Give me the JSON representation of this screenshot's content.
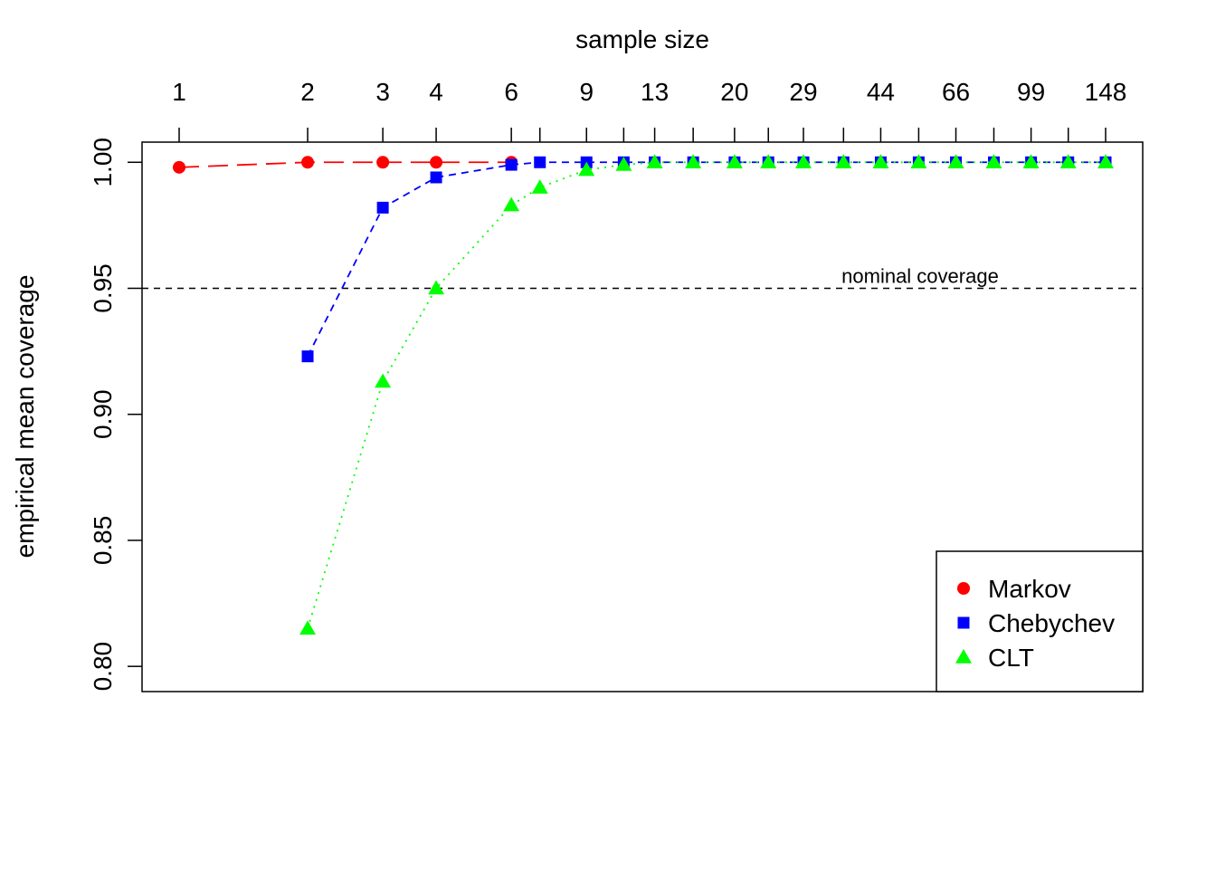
{
  "chart_data": {
    "type": "line",
    "xlabel": "sample size",
    "ylabel": "empirical mean coverage",
    "x_scale": "log",
    "x": [
      1,
      2,
      3,
      4,
      6,
      7,
      9,
      11,
      13,
      16,
      20,
      24,
      29,
      36,
      44,
      54,
      66,
      81,
      99,
      121,
      148
    ],
    "x_tick_labels": [
      "1",
      "2",
      "3",
      "4",
      "6",
      "9",
      "13",
      "20",
      "29",
      "44",
      "66",
      "99",
      "148"
    ],
    "y_ticks": [
      0.8,
      0.85,
      0.9,
      0.95,
      1.0
    ],
    "y_tick_labels": [
      "0.80",
      "0.85",
      "0.90",
      "0.95",
      "1.00"
    ],
    "ylim": [
      0.79,
      1.008
    ],
    "nominal_coverage": {
      "value": 0.95,
      "label": "nominal coverage"
    },
    "grid": false,
    "legend_position": "bottom-right",
    "series": [
      {
        "name": "Markov",
        "color": "#ff0000",
        "marker": "circle",
        "line": "longdash",
        "x": [
          1,
          2,
          3,
          4,
          6
        ],
        "values": [
          0.998,
          1.0,
          1.0,
          1.0,
          1.0
        ]
      },
      {
        "name": "Chebychev",
        "color": "#0000ff",
        "marker": "square",
        "line": "dashed",
        "x": [
          2,
          3,
          4,
          6,
          7,
          9,
          11,
          13,
          16,
          20,
          24,
          29,
          36,
          44,
          54,
          66,
          81,
          99,
          121,
          148
        ],
        "values": [
          0.923,
          0.982,
          0.994,
          0.999,
          1.0,
          1.0,
          1.0,
          1.0,
          1.0,
          1.0,
          1.0,
          1.0,
          1.0,
          1.0,
          1.0,
          1.0,
          1.0,
          1.0,
          1.0,
          1.0
        ]
      },
      {
        "name": "CLT",
        "color": "#00ff00",
        "marker": "triangle",
        "line": "dotted",
        "x": [
          2,
          3,
          4,
          6,
          7,
          9,
          11,
          13,
          16,
          20,
          24,
          29,
          36,
          44,
          54,
          66,
          81,
          99,
          121,
          148
        ],
        "values": [
          0.815,
          0.913,
          0.95,
          0.983,
          0.99,
          0.997,
          0.999,
          1.0,
          1.0,
          1.0,
          1.0,
          1.0,
          1.0,
          1.0,
          1.0,
          1.0,
          1.0,
          1.0,
          1.0,
          1.0
        ]
      }
    ]
  }
}
